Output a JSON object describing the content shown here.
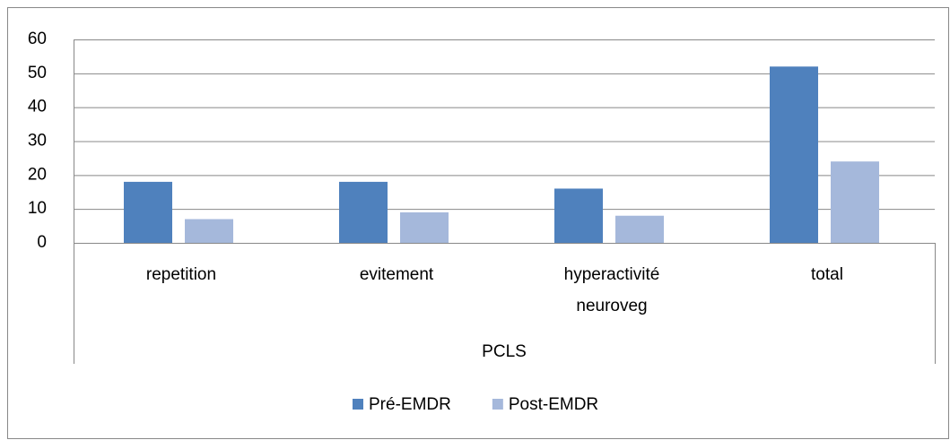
{
  "chart_data": {
    "type": "bar",
    "categories": [
      "repetition",
      "evitement",
      "hyperactivité neuroveg",
      "total"
    ],
    "category_group": "PCLS",
    "series": [
      {
        "name": "Pré-EMDR",
        "color": "#4f81bd",
        "values": [
          18,
          18,
          16,
          52
        ]
      },
      {
        "name": "Post-EMDR",
        "color": "#a5b8db",
        "values": [
          7,
          9,
          8,
          24
        ]
      }
    ],
    "ylim": [
      0,
      60
    ],
    "yticks": [
      0,
      10,
      20,
      30,
      40,
      50,
      60
    ],
    "grid": true,
    "legend": "bottom"
  }
}
